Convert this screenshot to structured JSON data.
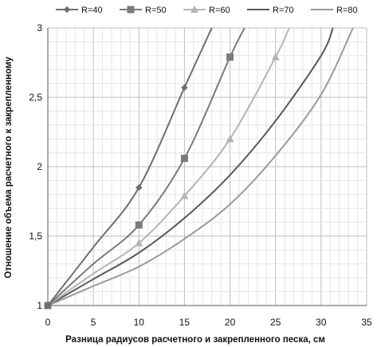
{
  "chart_data": {
    "type": "line",
    "title": "",
    "xlabel": "Разница радиусов расчетного и закрепленного песка, см",
    "ylabel": "Отношение объема расчетного к закрепленному",
    "xlim": [
      0,
      35
    ],
    "ylim": [
      1,
      3
    ],
    "x_ticks": [
      "0",
      "5",
      "10",
      "15",
      "20",
      "25",
      "30",
      "35"
    ],
    "y_ticks": [
      "1",
      "1,5",
      "2",
      "2,5",
      "3"
    ],
    "grid": true,
    "legend_position": "top",
    "series": [
      {
        "name": "R=40",
        "color": "#6e6e6e",
        "marker": "diamond",
        "line": [
          [
            0,
            1
          ],
          [
            5,
            1.42
          ],
          [
            10,
            1.85
          ],
          [
            15,
            2.57
          ],
          [
            18,
            3.0
          ]
        ],
        "markers": [
          [
            0,
            1
          ],
          [
            10,
            1.85
          ],
          [
            15,
            2.57
          ]
        ]
      },
      {
        "name": "R=50",
        "color": "#7a7a7a",
        "marker": "square",
        "line": [
          [
            0,
            1
          ],
          [
            5,
            1.3
          ],
          [
            10,
            1.58
          ],
          [
            15,
            2.06
          ],
          [
            20,
            2.79
          ],
          [
            21.6,
            3.0
          ]
        ],
        "markers": [
          [
            0,
            1
          ],
          [
            10,
            1.58
          ],
          [
            15,
            2.06
          ],
          [
            20,
            2.79
          ]
        ]
      },
      {
        "name": "R=60",
        "color": "#b4b4b4",
        "marker": "triangle",
        "line": [
          [
            0,
            1
          ],
          [
            5,
            1.23
          ],
          [
            10,
            1.45
          ],
          [
            15,
            1.79
          ],
          [
            20,
            2.2
          ],
          [
            25,
            2.79
          ],
          [
            26.5,
            3.0
          ]
        ],
        "markers": [
          [
            0,
            1
          ],
          [
            10,
            1.45
          ],
          [
            15,
            1.79
          ],
          [
            20,
            2.2
          ],
          [
            25,
            2.79
          ]
        ]
      },
      {
        "name": "R=70",
        "color": "#585858",
        "marker": "none",
        "line": [
          [
            0,
            1
          ],
          [
            5,
            1.19
          ],
          [
            10,
            1.38
          ],
          [
            15,
            1.63
          ],
          [
            20,
            1.94
          ],
          [
            25,
            2.33
          ],
          [
            30,
            2.8
          ],
          [
            31.3,
            3.0
          ]
        ],
        "markers": []
      },
      {
        "name": "R=80",
        "color": "#9a9a9a",
        "marker": "none",
        "line": [
          [
            0,
            1
          ],
          [
            5,
            1.14
          ],
          [
            10,
            1.28
          ],
          [
            15,
            1.48
          ],
          [
            20,
            1.73
          ],
          [
            25,
            2.08
          ],
          [
            30,
            2.52
          ],
          [
            33.5,
            3.0
          ]
        ],
        "markers": []
      }
    ]
  }
}
